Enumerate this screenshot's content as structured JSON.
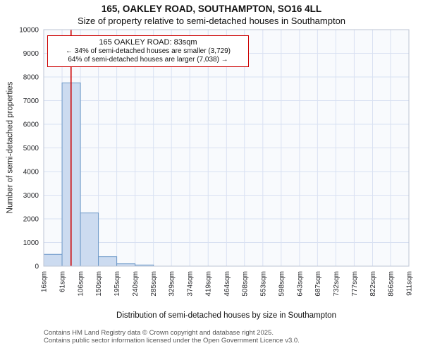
{
  "annotation": {
    "line1": "165 OAKLEY ROAD: 83sqm",
    "line2": "← 34% of semi-detached houses are smaller (3,729)",
    "line3": "64% of semi-detached houses are larger (7,038) →"
  },
  "footer": {
    "line1": "Contains HM Land Registry data © Crown copyright and database right 2025.",
    "line2": "Contains public sector information licensed under the Open Government Licence v3.0."
  },
  "chart_data": {
    "type": "bar",
    "title": "165, OAKLEY ROAD, SOUTHAMPTON, SO16 4LL",
    "subtitle": "Size of property relative to semi-detached houses in Southampton",
    "xlabel": "Distribution of semi-detached houses by size in Southampton",
    "ylabel": "Number of semi-detached properties",
    "bin_edges_sqm": [
      16,
      61,
      106,
      150,
      195,
      240,
      285,
      329,
      374,
      419,
      464,
      508,
      553,
      598,
      643,
      687,
      732,
      777,
      822,
      866,
      911
    ],
    "tick_labels": [
      "16sqm",
      "61sqm",
      "106sqm",
      "150sqm",
      "195sqm",
      "240sqm",
      "285sqm",
      "329sqm",
      "374sqm",
      "419sqm",
      "464sqm",
      "508sqm",
      "553sqm",
      "598sqm",
      "643sqm",
      "687sqm",
      "732sqm",
      "777sqm",
      "822sqm",
      "866sqm",
      "911sqm"
    ],
    "values": [
      500,
      7750,
      2250,
      400,
      100,
      50,
      0,
      0,
      0,
      0,
      0,
      0,
      0,
      0,
      0,
      0,
      0,
      0,
      0,
      0
    ],
    "ylim": [
      0,
      10000
    ],
    "ytick_step": 1000,
    "grid": true,
    "legend": "none",
    "marker_sqm": 83,
    "colors": {
      "marker": "#cc0000",
      "bar_fill": "#ccdbf0",
      "bar_stroke": "#6c98c8",
      "grid": "#d9e1f2",
      "plot_bg": "#f8fafd",
      "spine": "#bcc4d4"
    }
  }
}
